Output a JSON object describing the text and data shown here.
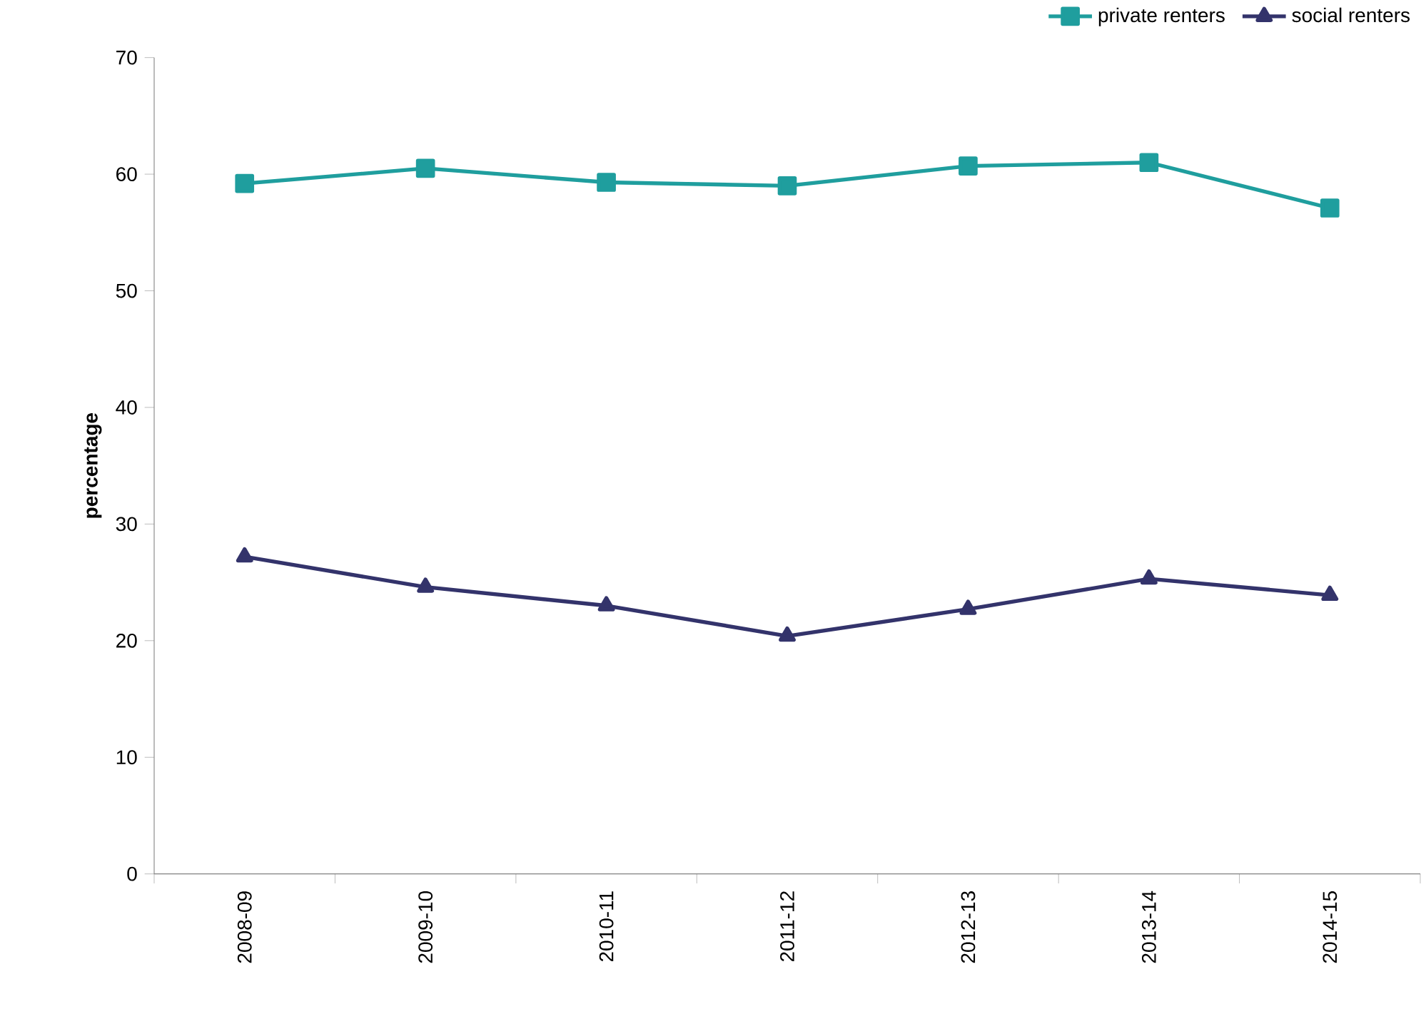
{
  "chart_data": {
    "type": "line",
    "ylabel": "percentage",
    "categories": [
      "2008-09",
      "2009-10",
      "2010-11",
      "2011-12",
      "2012-13",
      "2013-14",
      "2014-15"
    ],
    "series": [
      {
        "name": "private renters",
        "color": "#1f9e9e",
        "marker": "square",
        "values": [
          59.2,
          60.5,
          59.3,
          59.0,
          60.7,
          61.0,
          57.1
        ]
      },
      {
        "name": "social renters",
        "color": "#33336b",
        "marker": "triangle",
        "values": [
          27.2,
          24.6,
          23.0,
          20.4,
          22.7,
          25.3,
          23.9
        ]
      }
    ],
    "ylim": [
      0,
      70
    ],
    "yticks": [
      0,
      10,
      20,
      30,
      40,
      50,
      60,
      70
    ],
    "grid": false,
    "legend": "top right",
    "line_style": "solid"
  }
}
